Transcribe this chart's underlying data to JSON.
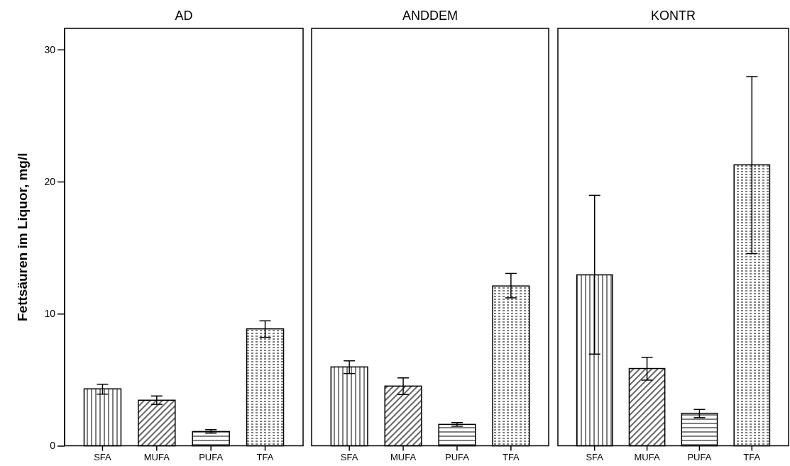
{
  "chart_data": [
    {
      "type": "bar",
      "title": "AD",
      "ylabel": "Fettsäuren im Liquor, mg/l",
      "categories": [
        "SFA",
        "MUFA",
        "PUFA",
        "TFA"
      ],
      "values": [
        4.31,
        3.45,
        1.08,
        8.85
      ],
      "errors": [
        [
          3.91,
          4.66
        ],
        [
          3.13,
          3.77
        ],
        [
          0.96,
          1.22
        ],
        [
          8.21,
          9.46
        ]
      ],
      "ylim": [
        0,
        31.6
      ],
      "yticks": [
        0,
        10,
        20,
        30
      ]
    },
    {
      "type": "bar",
      "title": "ANDDEM",
      "categories": [
        "SFA",
        "MUFA",
        "PUFA",
        "TFA"
      ],
      "values": [
        5.97,
        4.52,
        1.62,
        12.1
      ],
      "errors": [
        [
          5.47,
          6.43
        ],
        [
          3.88,
          5.14
        ],
        [
          1.48,
          1.76
        ],
        [
          11.2,
          13.05
        ]
      ],
      "ylim": [
        0,
        31.6
      ],
      "tick_labels": "x"
    },
    {
      "type": "bar",
      "title": "KONTR",
      "categories": [
        "SFA",
        "MUFA",
        "PUFA",
        "TFA"
      ],
      "values": [
        12.94,
        5.85,
        2.46,
        21.27
      ],
      "errors": [
        [
          6.94,
          18.96
        ],
        [
          4.97,
          6.7
        ],
        [
          2.13,
          2.75
        ],
        [
          14.55,
          27.95
        ]
      ],
      "ylim": [
        0,
        31.6
      ],
      "tick_labels": "x"
    }
  ]
}
